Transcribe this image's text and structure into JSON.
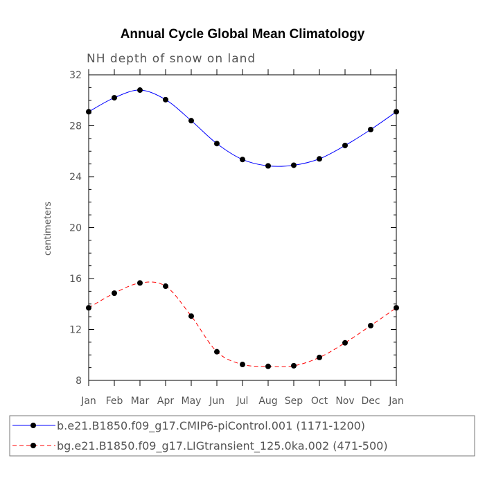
{
  "chart_data": {
    "type": "line",
    "title": "Annual Cycle Global Mean Climatology",
    "subtitle": "NH depth of snow on land",
    "xlabel": "",
    "ylabel": "centimeters",
    "categories": [
      "Jan",
      "Feb",
      "Mar",
      "Apr",
      "May",
      "Jun",
      "Jul",
      "Aug",
      "Sep",
      "Oct",
      "Nov",
      "Dec",
      "Jan"
    ],
    "ylim": [
      8,
      32
    ],
    "yticks": [
      "8",
      "12",
      "16",
      "20",
      "24",
      "28",
      "32"
    ],
    "series": [
      {
        "name": "b.e21.B1850.f09_g17.CMIP6-piControl.001 (1171-1200)",
        "color": "#0000ff",
        "dash": "solid",
        "values": [
          29.1,
          30.2,
          30.8,
          30.05,
          28.4,
          26.6,
          25.35,
          24.85,
          24.9,
          25.4,
          26.45,
          27.7,
          29.1
        ]
      },
      {
        "name": "bg.e21.B1850.f09_g17.LIGtransient_125.0ka.002 (471-500)",
        "color": "#ff0000",
        "dash": "dashed",
        "values": [
          13.7,
          14.85,
          15.65,
          15.4,
          13.05,
          10.25,
          9.25,
          9.1,
          9.15,
          9.8,
          10.95,
          12.3,
          13.7
        ]
      }
    ]
  }
}
